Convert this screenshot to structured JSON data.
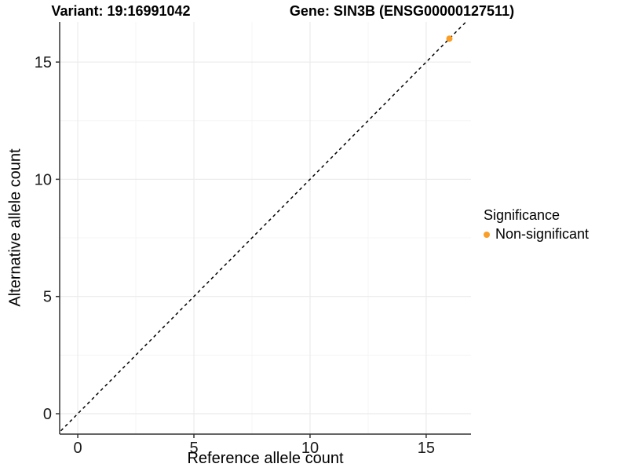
{
  "chart_data": {
    "type": "scatter",
    "title_left": "Variant: 19:16991042",
    "title_right": "Gene: SIN3B (ENSG00000127511)",
    "xlabel": "Reference allele count",
    "ylabel": "Alternative allele count",
    "xlim": [
      -0.78,
      16.93
    ],
    "ylim": [
      -0.87,
      16.71
    ],
    "xticks": [
      0,
      5,
      10,
      15
    ],
    "yticks": [
      0,
      5,
      10,
      15
    ],
    "x_minor_ticks": [
      2.5,
      7.5,
      12.5
    ],
    "y_minor_ticks": [
      2.5,
      7.5,
      12.5
    ],
    "grid": "major and minor, light gray on white",
    "reference_line": {
      "type": "identity y=x",
      "style": "dashed",
      "color": "#000000"
    },
    "series": [
      {
        "name": "Non-significant",
        "color": "#FA9E26",
        "points": [
          {
            "x": 16,
            "y": 16
          }
        ]
      }
    ],
    "legend": {
      "title": "Significance",
      "position": "right"
    }
  },
  "colors": {
    "background": "#FFFFFF",
    "axis_line": "#333333",
    "tick_text": "#1A1A1A",
    "grid_major": "#EBEBEB",
    "grid_minor": "#F5F5F5",
    "point": "#FA9E26",
    "dashed_line": "#000000"
  }
}
